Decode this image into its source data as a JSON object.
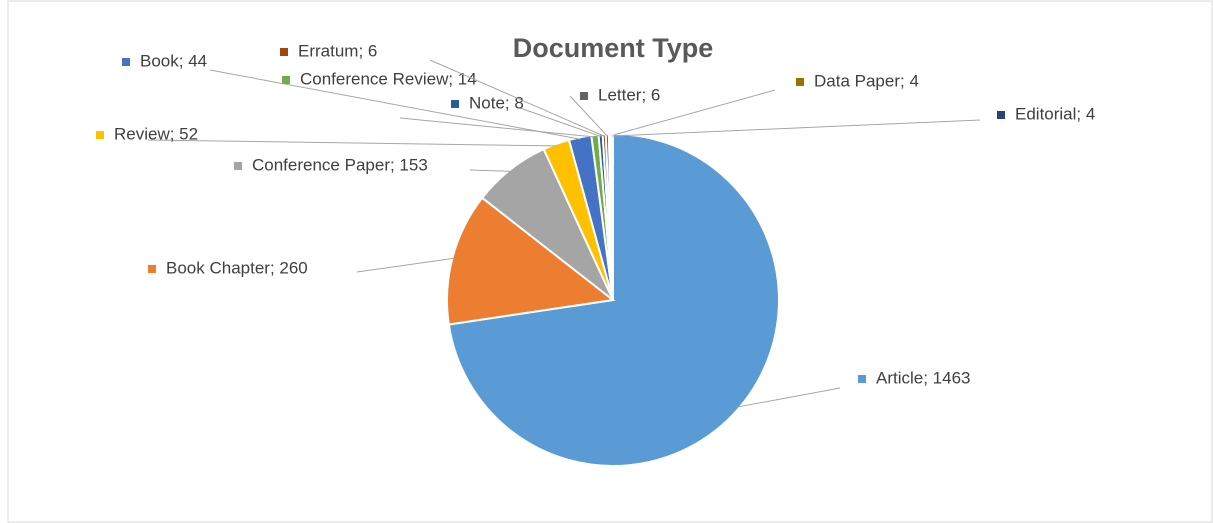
{
  "chart_data": {
    "type": "pie",
    "title": "Document Type",
    "values": [
      1463,
      260,
      153,
      52,
      44,
      14,
      8,
      6,
      6,
      4,
      4
    ],
    "value_labels": [
      "Article; 1463",
      "Book Chapter; 260",
      "Conference Paper; 153",
      "Review; 52",
      "Book; 44",
      "Conference Review; 14",
      "Note; 8",
      "Erratum; 6",
      "Letter; 6",
      "Data Paper; 4",
      "Editorial; 4"
    ],
    "colors": [
      "#5b9bd5",
      "#ed7d31",
      "#a5a5a5",
      "#ffc000",
      "#4472c4",
      "#70ad47",
      "#255e91",
      "#9e480e",
      "#636363",
      "#997300",
      "#264478"
    ]
  }
}
